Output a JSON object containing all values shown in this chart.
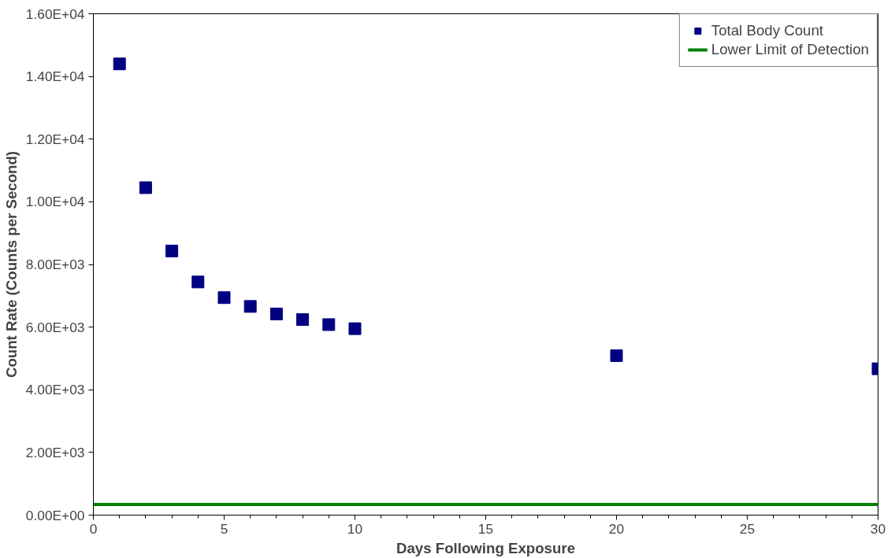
{
  "chart_data": {
    "type": "scatter",
    "xlabel": "Days Following Exposure",
    "ylabel": "Count Rate (Counts per Second)",
    "xlim": [
      0,
      30
    ],
    "xticks": [
      0,
      5,
      10,
      15,
      20,
      25,
      30
    ],
    "ylim": [
      0,
      16000
    ],
    "yticks": [
      {
        "value": 0,
        "label": "0.00E+00"
      },
      {
        "value": 2000,
        "label": "2.00E+03"
      },
      {
        "value": 4000,
        "label": "4.00E+03"
      },
      {
        "value": 6000,
        "label": "6.00E+03"
      },
      {
        "value": 8000,
        "label": "8.00E+03"
      },
      {
        "value": 10000,
        "label": "1.00E+04"
      },
      {
        "value": 12000,
        "label": "1.20E+04"
      },
      {
        "value": 14000,
        "label": "1.40E+04"
      },
      {
        "value": 16000,
        "label": "1.60E+04"
      }
    ],
    "grid": false,
    "legend": "top right",
    "series": [
      {
        "name": "Total Body Count",
        "marker": "square",
        "color": "#000080",
        "x": [
          1,
          2,
          3,
          4,
          5,
          6,
          7,
          8,
          9,
          10,
          20,
          30
        ],
        "values": [
          14400,
          10450,
          8430,
          7440,
          6940,
          6660,
          6420,
          6240,
          6080,
          5950,
          5090,
          4670
        ]
      },
      {
        "name": "Lower Limit of Detection",
        "type": "line",
        "marker": "none",
        "color": "#008000",
        "x": [
          0,
          30
        ],
        "values": [
          340,
          340
        ]
      }
    ]
  }
}
